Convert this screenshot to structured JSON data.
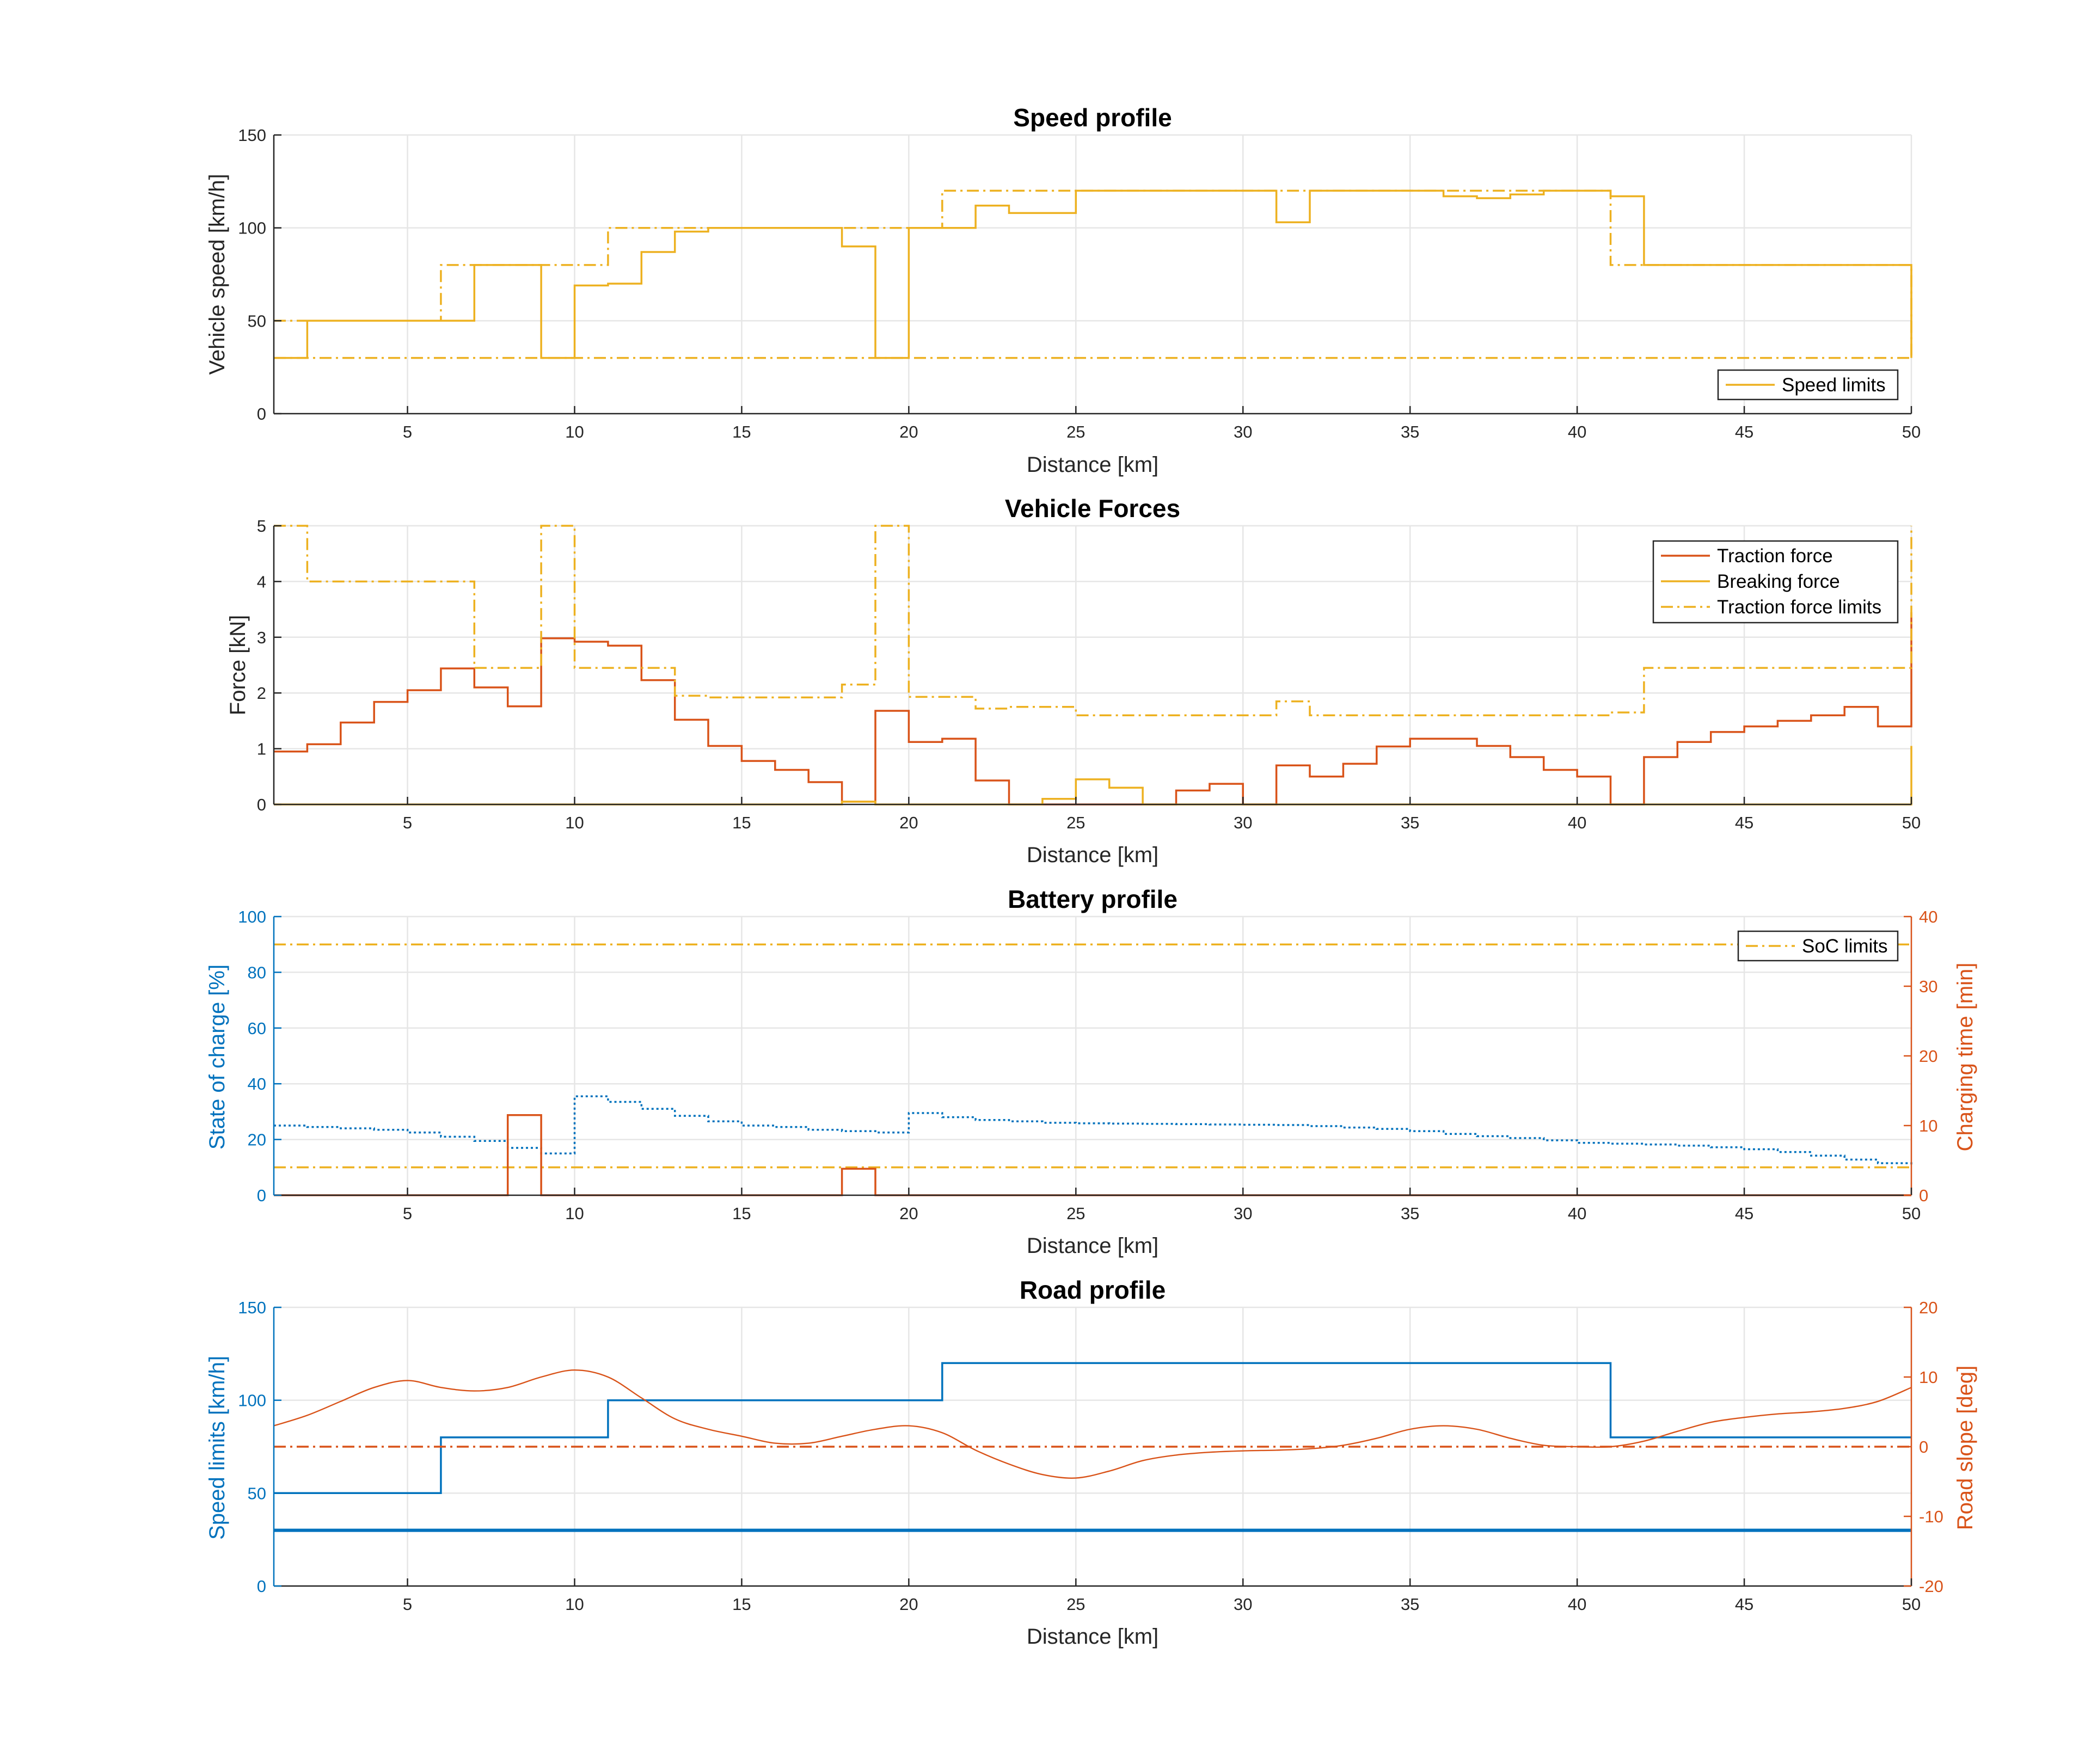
{
  "colors": {
    "blue": "#0072bd",
    "orange": "#d95319",
    "yellow": "#edb120",
    "grid": "#e6e6e6",
    "axis": "#262626"
  },
  "chart_data": [
    {
      "id": "speed",
      "type": "line",
      "title": "Speed profile",
      "xlabel": "Distance [km]",
      "ylabel": "Vehicle speed [km/h]",
      "xlim": [
        1,
        50
      ],
      "ylim": [
        0,
        150
      ],
      "xticks": [
        5,
        10,
        15,
        20,
        25,
        30,
        35,
        40,
        45,
        50
      ],
      "yticks": [
        0,
        50,
        100,
        150
      ],
      "grid": true,
      "legend": {
        "position": "bottom-right",
        "entries": [
          {
            "label": "Speed limits",
            "color": "yellow",
            "style": "solid"
          }
        ]
      },
      "series": [
        {
          "name": "Vehicle speed",
          "color": "yellow",
          "style": "solid",
          "step": true,
          "x": [
            1,
            2,
            3,
            4,
            5,
            6,
            7,
            8,
            9,
            10,
            11,
            12,
            13,
            14,
            15,
            16,
            17,
            18,
            19,
            20,
            21,
            22,
            23,
            24,
            25,
            26,
            27,
            28,
            29,
            30,
            31,
            32,
            33,
            34,
            35,
            36,
            37,
            38,
            39,
            40,
            41,
            42,
            43,
            44,
            45,
            46,
            47,
            48,
            49,
            50
          ],
          "y": [
            30,
            50,
            50,
            50,
            50,
            50,
            80,
            80,
            30,
            69,
            70,
            87,
            98,
            100,
            100,
            100,
            100,
            90,
            30,
            100,
            100,
            112,
            108,
            108,
            120,
            120,
            120,
            120,
            120,
            120,
            103,
            120,
            120,
            120,
            120,
            117,
            116,
            118,
            120,
            120,
            117,
            80,
            80,
            80,
            80,
            80,
            80,
            80,
            80,
            80
          ],
          "end": [
            50,
            30
          ]
        },
        {
          "name": "Speed limits (upper)",
          "color": "yellow",
          "style": "dashdot",
          "step": true,
          "x": [
            1,
            6,
            11,
            21,
            41,
            50
          ],
          "y": [
            50,
            80,
            100,
            120,
            80,
            80
          ],
          "end": [
            50,
            30
          ]
        },
        {
          "name": "Speed limits (lower)",
          "color": "yellow",
          "style": "dashdot",
          "step": false,
          "x": [
            1,
            50
          ],
          "y": [
            30,
            30
          ]
        }
      ]
    },
    {
      "id": "forces",
      "type": "line",
      "title": "Vehicle Forces",
      "xlabel": "Distance [km]",
      "ylabel": "Force [kN]",
      "xlim": [
        1,
        50
      ],
      "ylim": [
        0,
        5
      ],
      "xticks": [
        5,
        10,
        15,
        20,
        25,
        30,
        35,
        40,
        45,
        50
      ],
      "yticks": [
        0,
        1,
        2,
        3,
        4,
        5
      ],
      "grid": true,
      "legend": {
        "position": "top-right",
        "entries": [
          {
            "label": "Traction force",
            "color": "orange",
            "style": "solid"
          },
          {
            "label": "Breaking force",
            "color": "yellow",
            "style": "solid"
          },
          {
            "label": "Traction force limits",
            "color": "yellow",
            "style": "dashdot"
          }
        ]
      },
      "series": [
        {
          "name": "Traction force",
          "color": "orange",
          "style": "solid",
          "step": true,
          "x": [
            1,
            2,
            3,
            4,
            5,
            6,
            7,
            8,
            9,
            10,
            11,
            12,
            13,
            14,
            15,
            16,
            17,
            18,
            19,
            20,
            21,
            22,
            23,
            24,
            25,
            26,
            27,
            28,
            29,
            30,
            31,
            32,
            33,
            34,
            35,
            36,
            37,
            38,
            39,
            40,
            41,
            42,
            43,
            44,
            45,
            46,
            47,
            48,
            49,
            50
          ],
          "y": [
            0.95,
            1.08,
            1.47,
            1.84,
            2.05,
            2.44,
            2.1,
            1.76,
            2.98,
            2.92,
            2.85,
            2.23,
            1.52,
            1.05,
            0.78,
            0.62,
            0.4,
            0.05,
            1.68,
            1.12,
            1.18,
            0.43,
            0,
            0,
            0,
            0,
            0,
            0.25,
            0.37,
            0,
            0.7,
            0.5,
            0.73,
            1.04,
            1.18,
            1.18,
            1.05,
            0.85,
            0.62,
            0.5,
            0,
            0.85,
            1.12,
            1.3,
            1.4,
            1.5,
            1.6,
            1.75,
            1.4,
            1.4
          ],
          "end": [
            50,
            3.45
          ]
        },
        {
          "name": "Breaking force",
          "color": "yellow",
          "style": "solid",
          "step": true,
          "x": [
            1,
            18,
            19,
            24,
            25,
            26,
            27,
            49,
            50
          ],
          "y": [
            0,
            0.05,
            0,
            0.1,
            0.45,
            0.3,
            0,
            0,
            0
          ],
          "end": [
            50,
            1.05
          ]
        },
        {
          "name": "Traction force limits",
          "color": "yellow",
          "style": "dashdot",
          "step": true,
          "x": [
            1,
            2,
            3,
            7,
            9,
            10,
            13,
            14,
            18,
            19,
            20,
            22,
            23,
            25,
            31,
            32,
            41,
            42,
            50
          ],
          "y": [
            5,
            4,
            4,
            2.45,
            5,
            2.45,
            1.95,
            1.92,
            2.15,
            5,
            1.93,
            1.72,
            1.75,
            1.6,
            1.85,
            1.6,
            1.65,
            2.45,
            2.45
          ],
          "end": [
            50,
            5
          ]
        }
      ]
    },
    {
      "id": "battery",
      "type": "line",
      "title": "Battery profile",
      "xlabel": "Distance [km]",
      "ylabel": "State of charge [%]",
      "ylabel_right": "Charging time [min]",
      "xlim": [
        1,
        50
      ],
      "ylim": [
        0,
        100
      ],
      "ylim_right": [
        0,
        40
      ],
      "xticks": [
        5,
        10,
        15,
        20,
        25,
        30,
        35,
        40,
        45,
        50
      ],
      "yticks": [
        0,
        20,
        40,
        60,
        80,
        100
      ],
      "yticks_right": [
        0,
        10,
        20,
        30,
        40
      ],
      "grid": true,
      "legend": {
        "position": "top-right",
        "entries": [
          {
            "label": "SoC limits",
            "color": "yellow",
            "style": "dashdot"
          }
        ]
      },
      "series": [
        {
          "name": "State of charge",
          "color": "blue",
          "style": "dotted",
          "step": true,
          "axis": "left",
          "x": [
            1,
            2,
            3,
            4,
            5,
            6,
            7,
            8,
            9,
            10,
            11,
            12,
            13,
            14,
            15,
            16,
            17,
            18,
            19,
            20,
            21,
            22,
            23,
            24,
            25,
            26,
            27,
            28,
            29,
            30,
            31,
            32,
            33,
            34,
            35,
            36,
            37,
            38,
            39,
            40,
            41,
            42,
            43,
            44,
            45,
            46,
            47,
            48,
            49,
            50
          ],
          "y": [
            25,
            24.5,
            24,
            23.5,
            22.5,
            21,
            19.5,
            17,
            15,
            35.5,
            33.5,
            31,
            28.5,
            26.5,
            25,
            24.5,
            23.5,
            23,
            22.5,
            29.5,
            28,
            27,
            26.5,
            26,
            25.8,
            25.7,
            25.6,
            25.5,
            25.4,
            25.3,
            25.2,
            24.8,
            24.3,
            23.8,
            23,
            22,
            21.2,
            20.5,
            19.7,
            18.8,
            18.5,
            18.2,
            17.8,
            17.2,
            16.5,
            15.5,
            14.2,
            12.8,
            11.5,
            10.2
          ]
        },
        {
          "name": "SoC limits (upper)",
          "color": "yellow",
          "style": "dashdot",
          "step": false,
          "axis": "left",
          "x": [
            1,
            50
          ],
          "y": [
            90,
            90
          ]
        },
        {
          "name": "SoC limits (lower)",
          "color": "yellow",
          "style": "dashdot",
          "step": false,
          "axis": "left",
          "x": [
            1,
            50
          ],
          "y": [
            10,
            10
          ]
        },
        {
          "name": "Charging time",
          "color": "orange",
          "style": "solid",
          "step": true,
          "axis": "right",
          "x": [
            1,
            8,
            9,
            18,
            19,
            50
          ],
          "y": [
            0,
            11.5,
            0,
            3.8,
            0,
            0
          ]
        }
      ]
    },
    {
      "id": "road",
      "type": "line",
      "title": "Road profile",
      "xlabel": "Distance [km]",
      "ylabel": "Speed limits [km/h]",
      "ylabel_right": "Road slope [deg]",
      "xlim": [
        1,
        50
      ],
      "ylim": [
        0,
        150
      ],
      "ylim_right": [
        -20,
        20
      ],
      "xticks": [
        5,
        10,
        15,
        20,
        25,
        30,
        35,
        40,
        45,
        50
      ],
      "yticks": [
        0,
        50,
        100,
        150
      ],
      "yticks_right": [
        -20,
        -10,
        0,
        10,
        20
      ],
      "grid": true,
      "series": [
        {
          "name": "Speed limits (upper)",
          "color": "blue",
          "style": "solid",
          "step": true,
          "axis": "left",
          "x": [
            1,
            6,
            11,
            21,
            41,
            50
          ],
          "y": [
            50,
            80,
            100,
            120,
            80,
            80
          ]
        },
        {
          "name": "Speed limits (lower)",
          "color": "blue",
          "style": "solid",
          "width": 2,
          "step": false,
          "axis": "left",
          "x": [
            1,
            50
          ],
          "y": [
            30,
            30
          ]
        },
        {
          "name": "Zero slope",
          "color": "orange",
          "style": "dashdot",
          "step": false,
          "axis": "right",
          "x": [
            1,
            50
          ],
          "y": [
            0,
            0
          ]
        },
        {
          "name": "Road slope",
          "color": "orange",
          "style": "solid",
          "width": 0.8,
          "smooth": true,
          "axis": "right",
          "x": [
            1,
            2,
            3,
            4,
            5,
            6,
            7,
            8,
            9,
            10,
            11,
            12,
            13,
            14,
            15,
            16,
            17,
            18,
            19,
            20,
            21,
            22,
            23,
            24,
            25,
            26,
            27,
            28,
            29,
            30,
            31,
            32,
            33,
            34,
            35,
            36,
            37,
            38,
            39,
            40,
            41,
            42,
            43,
            44,
            45,
            46,
            47,
            48,
            49,
            50
          ],
          "y": [
            3,
            4.5,
            6.5,
            8.5,
            9.5,
            8.5,
            8,
            8.5,
            10,
            11,
            10,
            7,
            4,
            2.5,
            1.5,
            0.5,
            0.5,
            1.5,
            2.5,
            3,
            2,
            -0.5,
            -2.5,
            -4,
            -4.5,
            -3.5,
            -2,
            -1.2,
            -0.8,
            -0.6,
            -0.5,
            -0.3,
            0.2,
            1.2,
            2.5,
            3,
            2.5,
            1.2,
            0.2,
            0,
            0,
            0.8,
            2.2,
            3.5,
            4.2,
            4.7,
            5,
            5.5,
            6.5,
            8.5
          ]
        }
      ]
    }
  ]
}
